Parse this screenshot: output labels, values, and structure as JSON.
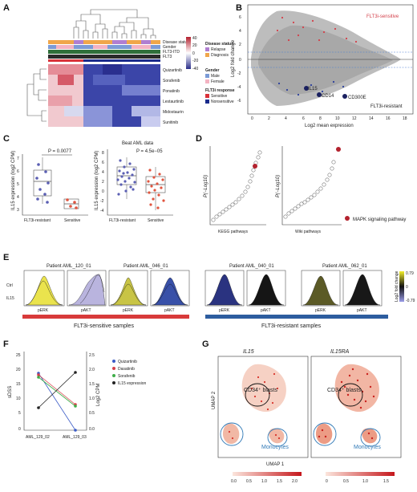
{
  "panels": [
    "A",
    "B",
    "C",
    "D",
    "E",
    "F",
    "G"
  ],
  "panel_a": {
    "row_labels": [
      "Disease status",
      "Gender",
      "FLT3-ITD",
      "FLT3"
    ],
    "drugs": [
      "Quizartinib",
      "Sorafenib",
      "Ponatinib",
      "Lestaurtinib",
      "Midostaurin",
      "Sunitinib"
    ],
    "scale_ticks": [
      "40",
      "20",
      "0",
      "-20",
      "-40"
    ],
    "legend_disease_title": "Disease status",
    "legend_disease": [
      "Relapse",
      "Diagnosis"
    ],
    "legend_gender_title": "Gender",
    "legend_gender": [
      "Male",
      "Female"
    ],
    "legend_flt3_title": "FLT3i response",
    "legend_flt3": [
      "Sensitive",
      "Nonsensitive"
    ],
    "colors": {
      "relapse": "#b07ed1",
      "diagnosis": "#f0a64a",
      "male": "#7b9bd6",
      "female": "#f4b3c2",
      "sensitive": "#d9323a",
      "nonsensitive": "#1a2b8c"
    }
  },
  "panel_b": {
    "ylabel": "Log2 fold change",
    "xlabel": "Log2 mean expression",
    "label_top": "FLT3i-sensitive",
    "label_bottom": "FLT3i-resistant",
    "genes": [
      "IL15",
      "CD14",
      "CD300E"
    ],
    "x_ticks": [
      "0",
      "2",
      "4",
      "6",
      "8",
      "10",
      "12",
      "14",
      "16",
      "18"
    ],
    "y_ticks": [
      "6",
      "4",
      "2",
      "0",
      "-2",
      "-4",
      "-6"
    ]
  },
  "panel_c": {
    "left_ylabel": "IL15 expression (log2 CPM)",
    "left_pvalue": "P = 0.0077",
    "left_groups": [
      "FLT3i-resistant",
      "Sensitive"
    ],
    "left_yticks": [
      "7",
      "6",
      "5",
      "4",
      "3"
    ],
    "right_title": "Beat AML data",
    "right_ylabel": "IL15 expression (log2 CPM)",
    "right_pvalue": "P = 4.5e−05",
    "right_groups": [
      "FLT3i-resistant",
      "Sensitive"
    ],
    "right_yticks": [
      "8",
      "6",
      "4",
      "2",
      "0",
      "-2",
      "-4"
    ]
  },
  "panel_d": {
    "ylabel": "P(−Log10)",
    "left_xlabel": "KEGG pathways",
    "right_xlabel": "Wiki pathways",
    "legend": "MAPK signaling pathway"
  },
  "panel_e": {
    "patients": [
      "Patient AML_120_01",
      "Patient AML_046_01",
      "Patient AML_040_01",
      "Patient AML_062_01"
    ],
    "row_labels": [
      "Ctrl",
      "IL15"
    ],
    "xlabels": [
      "pERK",
      "pAKT",
      "pERK",
      "pAKT",
      "pERK",
      "pAKT",
      "pERK",
      "pAKT"
    ],
    "scale_title": "Log2 fold change",
    "scale_ticks": [
      "0.79",
      "0",
      "-0.79"
    ],
    "group_sensitive": "FLT3i-sensitive samples",
    "group_resistant": "FLT3i-resistant samples",
    "colors": {
      "sensitive_bar": "#d83a3a",
      "resistant_bar": "#2d5d9f"
    }
  },
  "panel_f": {
    "ylabel_left": "sDSS",
    "ylabel_right": "Log2 CPM",
    "samples": [
      "AML_129_02",
      "AML_129_03"
    ],
    "left_yticks": [
      "25",
      "20",
      "15",
      "10",
      "5",
      "0"
    ],
    "right_yticks": [
      "2.5",
      "2.0",
      "1.5",
      "1.0",
      "0.5",
      "0.0"
    ],
    "legend": [
      "Quizartinib",
      "Dasatinib",
      "Sorafenib",
      "IL15 expression"
    ],
    "series_colors": [
      "#3a5bc7",
      "#d6404a",
      "#3fae49",
      "#222222"
    ]
  },
  "panel_g": {
    "titles": [
      "IL15",
      "IL15RA"
    ],
    "ylabel": "UMAP 2",
    "xlabel": "UMAP 1",
    "blast_label": "CD34⁺ blasts",
    "monocyte_label": "Monocytes",
    "left_scale": [
      "0.0",
      "0.5",
      "1.0",
      "1.5",
      "2.0"
    ],
    "right_scale": [
      "0",
      "0.5",
      "1.0",
      "1.5"
    ]
  }
}
